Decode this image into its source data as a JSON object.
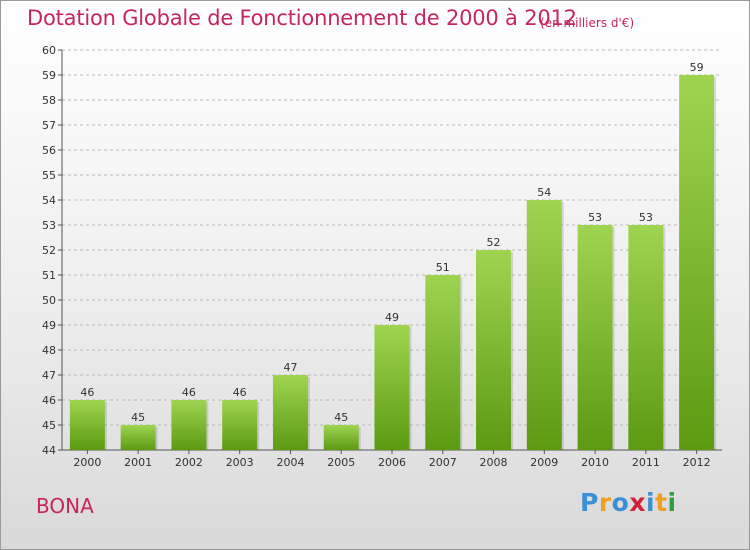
{
  "title": "Dotation Globale de Fonctionnement de 2000 à 2012",
  "subtitle": "(en milliers d'€)",
  "commune": "BONA",
  "logo": {
    "letters": [
      "P",
      "r",
      "o",
      "x",
      "i",
      "t",
      "i"
    ],
    "colors": [
      "#3a8fd6",
      "#f0a020",
      "#3a8fd6",
      "#d0203a",
      "#3a8fd6",
      "#f0a020",
      "#2aa040"
    ]
  },
  "colors": {
    "title": "#c8245f",
    "bar_top": "#9fd451",
    "bar_bottom": "#5c9a12",
    "grid": "#b8b8b8"
  },
  "chart_data": {
    "type": "bar",
    "title": "Dotation Globale de Fonctionnement de 2000 à 2012",
    "subtitle": "(en milliers d'€)",
    "xlabel": "",
    "ylabel": "",
    "categories": [
      "2000",
      "2001",
      "2002",
      "2003",
      "2004",
      "2005",
      "2006",
      "2007",
      "2008",
      "2009",
      "2010",
      "2011",
      "2012"
    ],
    "values": [
      46,
      45,
      46,
      46,
      47,
      45,
      49,
      51,
      52,
      54,
      53,
      53,
      59
    ],
    "data_labels": [
      "46",
      "45",
      "46",
      "46",
      "47",
      "45",
      "49",
      "51",
      "52",
      "54",
      "53",
      "53",
      "59"
    ],
    "ylim": [
      44,
      60
    ],
    "yticks": [
      "44",
      "45",
      "46",
      "47",
      "48",
      "49",
      "50",
      "51",
      "52",
      "53",
      "54",
      "55",
      "56",
      "57",
      "58",
      "59",
      "60"
    ],
    "grid": "horizontal dashed",
    "legend": "none"
  }
}
